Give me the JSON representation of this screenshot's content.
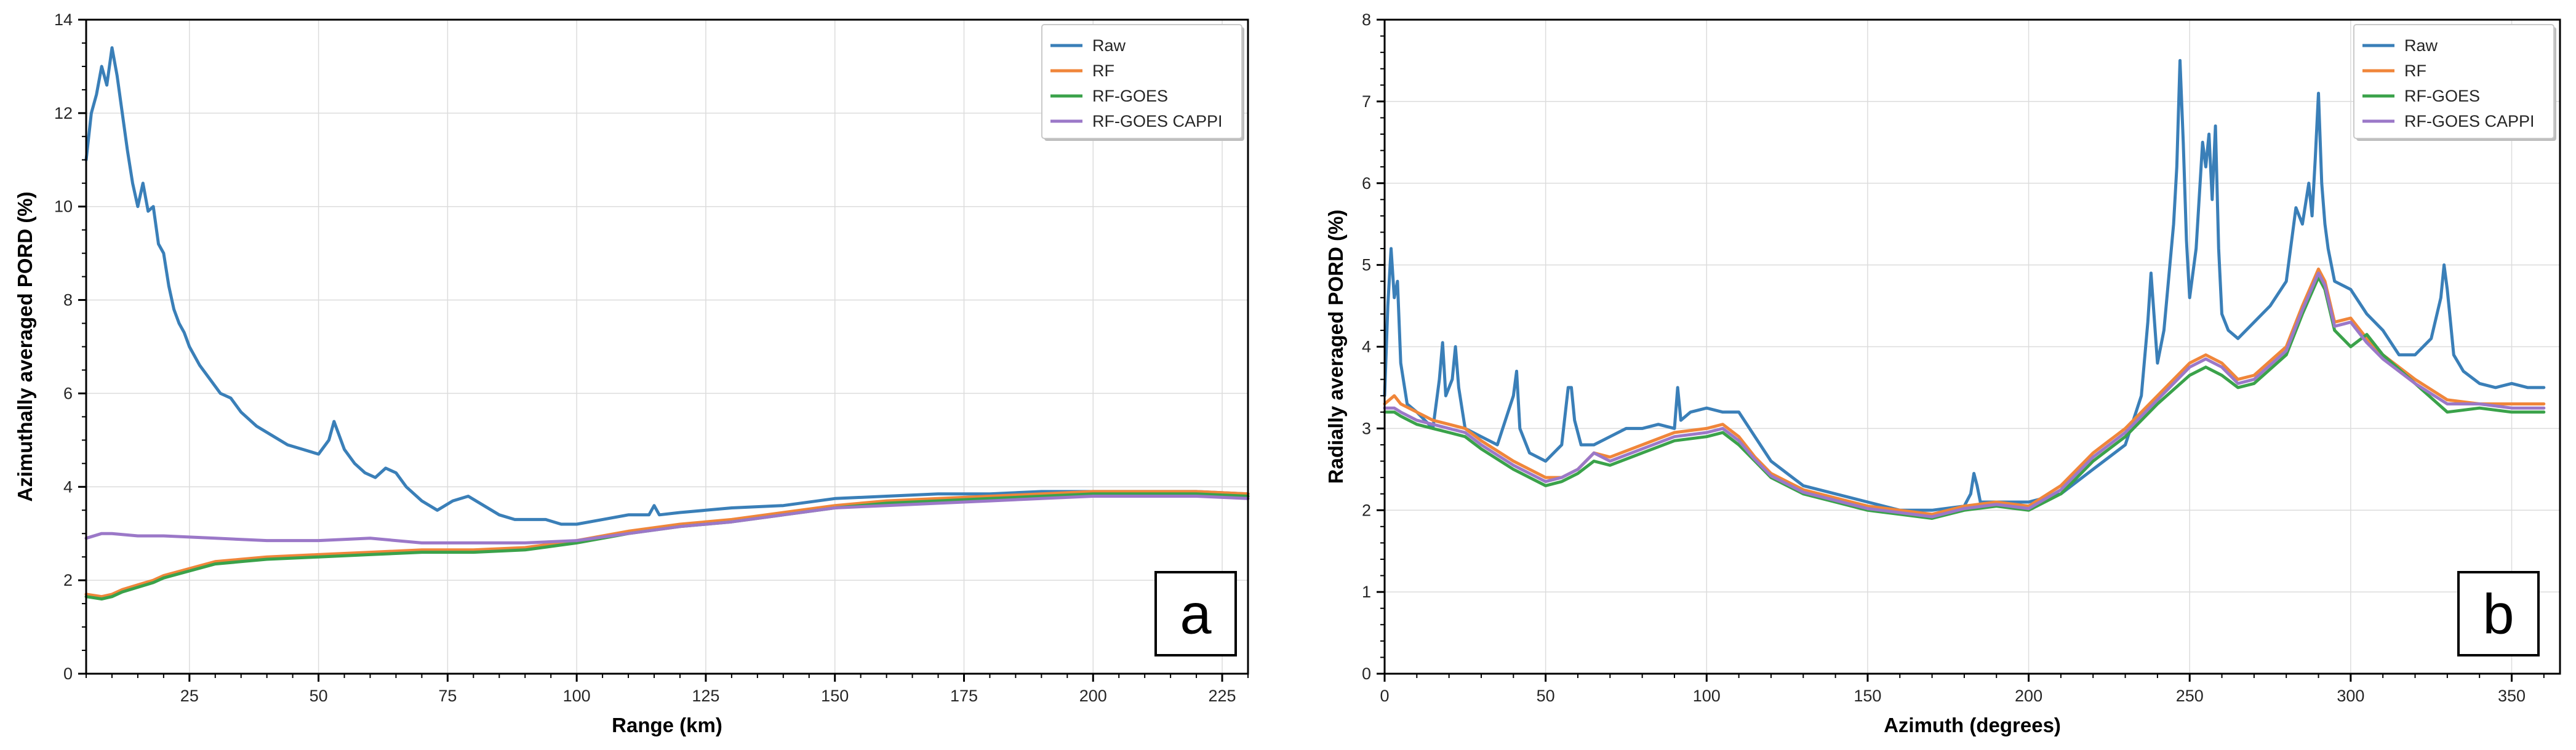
{
  "chart_data": [
    {
      "panel": "a",
      "type": "line",
      "xlabel": "Range (km)",
      "ylabel": "Azimuthally averaged PORD (%)",
      "xlim": [
        5,
        230
      ],
      "ylim": [
        0,
        14
      ],
      "xticks": [
        25,
        50,
        75,
        100,
        125,
        150,
        175,
        200,
        225
      ],
      "yticks": [
        0,
        2,
        4,
        6,
        8,
        10,
        12,
        14
      ],
      "grid": true,
      "legend": "top-right",
      "series": [
        {
          "name": "Raw",
          "color": "#3a7fb8",
          "x": [
            5,
            6,
            7,
            8,
            9,
            10,
            11,
            12,
            13,
            14,
            15,
            16,
            17,
            18,
            19,
            20,
            21,
            22,
            23,
            24,
            25,
            27,
            29,
            31,
            33,
            35,
            38,
            41,
            44,
            47,
            50,
            52,
            53,
            54,
            55,
            57,
            59,
            61,
            63,
            65,
            67,
            70,
            73,
            76,
            79,
            82,
            85,
            88,
            91,
            94,
            97,
            100,
            105,
            110,
            114,
            115,
            116,
            120,
            125,
            130,
            140,
            150,
            160,
            170,
            180,
            190,
            200,
            210,
            220,
            230
          ],
          "y": [
            11.0,
            12.0,
            12.4,
            13.0,
            12.6,
            13.4,
            12.8,
            12.0,
            11.2,
            10.5,
            10.0,
            10.5,
            9.9,
            10.0,
            9.2,
            9.0,
            8.3,
            7.8,
            7.5,
            7.3,
            7.0,
            6.6,
            6.3,
            6.0,
            5.9,
            5.6,
            5.3,
            5.1,
            4.9,
            4.8,
            4.7,
            5.0,
            5.4,
            5.1,
            4.8,
            4.5,
            4.3,
            4.2,
            4.4,
            4.3,
            4.0,
            3.7,
            3.5,
            3.7,
            3.8,
            3.6,
            3.4,
            3.3,
            3.3,
            3.3,
            3.2,
            3.2,
            3.3,
            3.4,
            3.4,
            3.6,
            3.4,
            3.45,
            3.5,
            3.55,
            3.6,
            3.75,
            3.8,
            3.85,
            3.85,
            3.9,
            3.9,
            3.9,
            3.9,
            3.85
          ]
        },
        {
          "name": "RF",
          "color": "#f0863a",
          "x": [
            5,
            8,
            10,
            12,
            15,
            18,
            20,
            25,
            30,
            35,
            40,
            50,
            60,
            70,
            80,
            90,
            100,
            110,
            120,
            130,
            140,
            150,
            160,
            170,
            180,
            190,
            200,
            210,
            220,
            230
          ],
          "y": [
            1.7,
            1.65,
            1.7,
            1.8,
            1.9,
            2.0,
            2.1,
            2.25,
            2.4,
            2.45,
            2.5,
            2.55,
            2.6,
            2.65,
            2.65,
            2.7,
            2.85,
            3.05,
            3.2,
            3.3,
            3.45,
            3.6,
            3.7,
            3.75,
            3.8,
            3.85,
            3.9,
            3.9,
            3.9,
            3.85
          ]
        },
        {
          "name": "RF-GOES",
          "color": "#3aa24a",
          "x": [
            5,
            8,
            10,
            12,
            15,
            18,
            20,
            25,
            30,
            35,
            40,
            50,
            60,
            70,
            80,
            90,
            100,
            110,
            120,
            130,
            140,
            150,
            160,
            170,
            180,
            190,
            200,
            210,
            220,
            230
          ],
          "y": [
            1.65,
            1.6,
            1.65,
            1.75,
            1.85,
            1.95,
            2.05,
            2.2,
            2.35,
            2.4,
            2.45,
            2.5,
            2.55,
            2.6,
            2.6,
            2.65,
            2.8,
            3.0,
            3.15,
            3.25,
            3.4,
            3.55,
            3.65,
            3.7,
            3.75,
            3.8,
            3.85,
            3.85,
            3.85,
            3.8
          ]
        },
        {
          "name": "RF-GOES CAPPI",
          "color": "#9b78c8",
          "x": [
            5,
            8,
            10,
            15,
            20,
            30,
            40,
            50,
            60,
            70,
            80,
            90,
            100,
            110,
            120,
            130,
            140,
            150,
            160,
            170,
            180,
            190,
            200,
            210,
            220,
            230
          ],
          "y": [
            2.9,
            3.0,
            3.0,
            2.95,
            2.95,
            2.9,
            2.85,
            2.85,
            2.9,
            2.8,
            2.8,
            2.8,
            2.85,
            3.0,
            3.15,
            3.25,
            3.4,
            3.55,
            3.6,
            3.65,
            3.7,
            3.75,
            3.8,
            3.8,
            3.8,
            3.75
          ]
        }
      ]
    },
    {
      "panel": "b",
      "type": "line",
      "xlabel": "Azimuth (degrees)",
      "ylabel": "Radially averaged PORD (%)",
      "xlim": [
        0,
        365
      ],
      "ylim": [
        0,
        8
      ],
      "xticks": [
        0,
        50,
        100,
        150,
        200,
        250,
        300,
        350
      ],
      "yticks": [
        0,
        1,
        2,
        3,
        4,
        5,
        6,
        7,
        8
      ],
      "grid": true,
      "legend": "top-right",
      "series": [
        {
          "name": "Raw",
          "color": "#3a7fb8",
          "x": [
            0,
            1,
            2,
            3,
            4,
            5,
            7,
            10,
            15,
            17,
            18,
            19,
            21,
            22,
            23,
            25,
            30,
            35,
            40,
            41,
            42,
            45,
            50,
            55,
            57,
            58,
            59,
            61,
            65,
            70,
            75,
            80,
            85,
            90,
            91,
            92,
            95,
            100,
            105,
            110,
            115,
            120,
            130,
            140,
            150,
            160,
            170,
            180,
            182,
            183,
            184,
            185,
            190,
            200,
            210,
            220,
            230,
            235,
            237,
            238,
            240,
            242,
            245,
            246,
            247,
            248,
            249,
            250,
            252,
            254,
            255,
            256,
            257,
            258,
            259,
            260,
            262,
            265,
            270,
            275,
            280,
            283,
            285,
            287,
            288,
            289,
            290,
            291,
            292,
            293,
            295,
            300,
            305,
            310,
            315,
            320,
            325,
            328,
            329,
            330,
            331,
            332,
            335,
            340,
            345,
            350,
            355,
            360
          ],
          "y": [
            3.4,
            4.5,
            5.2,
            4.6,
            4.8,
            3.8,
            3.3,
            3.2,
            3.0,
            3.6,
            4.05,
            3.4,
            3.6,
            4.0,
            3.5,
            3.0,
            2.9,
            2.8,
            3.4,
            3.7,
            3.0,
            2.7,
            2.6,
            2.8,
            3.5,
            3.5,
            3.1,
            2.8,
            2.8,
            2.9,
            3.0,
            3.0,
            3.05,
            3.0,
            3.5,
            3.1,
            3.2,
            3.25,
            3.2,
            3.2,
            2.9,
            2.6,
            2.3,
            2.2,
            2.1,
            2.0,
            2.0,
            2.05,
            2.2,
            2.45,
            2.3,
            2.1,
            2.1,
            2.1,
            2.2,
            2.5,
            2.8,
            3.4,
            4.3,
            4.9,
            3.8,
            4.2,
            5.5,
            6.2,
            7.5,
            6.5,
            5.3,
            4.6,
            5.2,
            6.5,
            6.2,
            6.6,
            5.8,
            6.7,
            5.2,
            4.4,
            4.2,
            4.1,
            4.3,
            4.5,
            4.8,
            5.7,
            5.5,
            6.0,
            5.6,
            6.3,
            7.1,
            6.0,
            5.5,
            5.2,
            4.8,
            4.7,
            4.4,
            4.2,
            3.9,
            3.9,
            4.1,
            4.6,
            5.0,
            4.7,
            4.3,
            3.9,
            3.7,
            3.55,
            3.5,
            3.55,
            3.5,
            3.5
          ]
        },
        {
          "name": "RF",
          "color": "#f0863a",
          "x": [
            0,
            3,
            5,
            10,
            15,
            20,
            25,
            30,
            40,
            50,
            55,
            60,
            65,
            70,
            80,
            90,
            100,
            105,
            110,
            115,
            120,
            130,
            140,
            150,
            160,
            170,
            180,
            190,
            200,
            210,
            220,
            230,
            240,
            250,
            255,
            260,
            265,
            270,
            280,
            285,
            290,
            292,
            295,
            300,
            305,
            310,
            320,
            330,
            340,
            350,
            360
          ],
          "y": [
            3.3,
            3.4,
            3.3,
            3.2,
            3.1,
            3.05,
            3.0,
            2.85,
            2.6,
            2.4,
            2.4,
            2.5,
            2.7,
            2.65,
            2.8,
            2.95,
            3.0,
            3.05,
            2.9,
            2.65,
            2.45,
            2.25,
            2.15,
            2.05,
            2.0,
            1.95,
            2.05,
            2.1,
            2.05,
            2.3,
            2.7,
            3.0,
            3.4,
            3.8,
            3.9,
            3.8,
            3.6,
            3.65,
            4.0,
            4.5,
            4.95,
            4.8,
            4.3,
            4.35,
            4.1,
            3.9,
            3.6,
            3.35,
            3.3,
            3.3,
            3.3
          ]
        },
        {
          "name": "RF-GOES",
          "color": "#3aa24a",
          "x": [
            0,
            3,
            5,
            10,
            15,
            20,
            25,
            30,
            40,
            50,
            55,
            60,
            65,
            70,
            80,
            90,
            100,
            105,
            110,
            115,
            120,
            130,
            140,
            150,
            160,
            170,
            180,
            190,
            200,
            210,
            220,
            230,
            240,
            250,
            255,
            260,
            265,
            270,
            280,
            285,
            290,
            292,
            295,
            300,
            305,
            310,
            320,
            330,
            340,
            350,
            360
          ],
          "y": [
            3.2,
            3.2,
            3.15,
            3.05,
            3.0,
            2.95,
            2.9,
            2.75,
            2.5,
            2.3,
            2.35,
            2.45,
            2.6,
            2.55,
            2.7,
            2.85,
            2.9,
            2.95,
            2.8,
            2.6,
            2.4,
            2.2,
            2.1,
            2.0,
            1.95,
            1.9,
            2.0,
            2.05,
            2.0,
            2.2,
            2.6,
            2.9,
            3.3,
            3.65,
            3.75,
            3.65,
            3.5,
            3.55,
            3.9,
            4.4,
            4.85,
            4.7,
            4.2,
            4.0,
            4.15,
            3.9,
            3.55,
            3.2,
            3.25,
            3.2,
            3.2
          ]
        },
        {
          "name": "RF-GOES CAPPI",
          "color": "#9b78c8",
          "x": [
            0,
            3,
            5,
            10,
            15,
            20,
            25,
            30,
            40,
            50,
            55,
            60,
            65,
            70,
            80,
            90,
            100,
            105,
            110,
            115,
            120,
            130,
            140,
            150,
            160,
            170,
            180,
            190,
            200,
            210,
            220,
            230,
            240,
            250,
            255,
            260,
            265,
            270,
            280,
            285,
            290,
            292,
            295,
            300,
            305,
            310,
            320,
            330,
            340,
            350,
            360
          ],
          "y": [
            3.25,
            3.25,
            3.2,
            3.1,
            3.05,
            3.0,
            2.95,
            2.8,
            2.55,
            2.35,
            2.4,
            2.5,
            2.7,
            2.6,
            2.75,
            2.9,
            2.95,
            3.0,
            2.85,
            2.62,
            2.42,
            2.22,
            2.12,
            2.02,
            1.97,
            1.92,
            2.02,
            2.07,
            2.02,
            2.25,
            2.65,
            2.95,
            3.35,
            3.75,
            3.85,
            3.75,
            3.55,
            3.6,
            3.95,
            4.45,
            4.9,
            4.75,
            4.25,
            4.3,
            4.05,
            3.85,
            3.55,
            3.3,
            3.3,
            3.25,
            3.25
          ]
        }
      ]
    }
  ]
}
